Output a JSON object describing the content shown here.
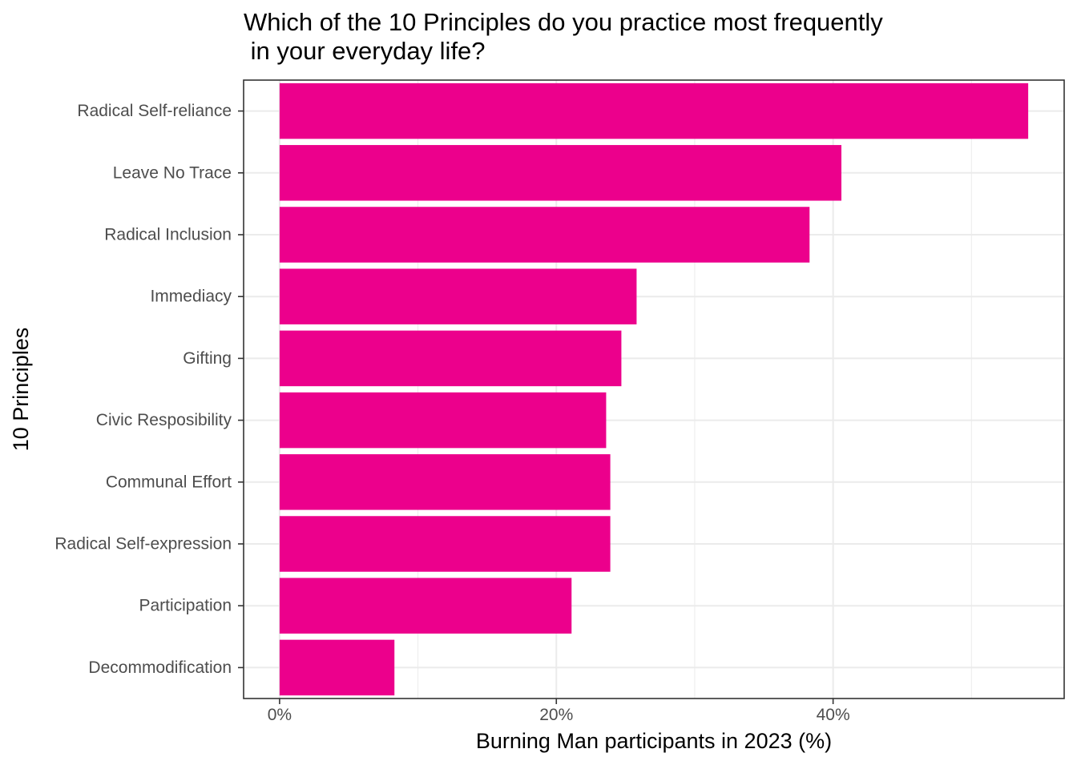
{
  "chart_data": {
    "type": "bar",
    "orientation": "horizontal",
    "title": "Which of the 10 Principles do you practice most frequently\n in your everyday life?",
    "xlabel": "Burning Man participants in 2023 (%)",
    "ylabel": "10 Principles",
    "categories": [
      "Radical Self-reliance",
      "Leave No Trace",
      "Radical Inclusion",
      "Immediacy",
      "Gifting",
      "Civic Resposibility",
      "Communal Effort",
      "Radical Self-expression",
      "Participation",
      "Decommodification"
    ],
    "values": [
      54.1,
      40.6,
      38.3,
      25.8,
      24.7,
      23.6,
      23.9,
      23.9,
      21.1,
      8.3
    ],
    "xlim": [
      -2.6,
      56.7
    ],
    "x_ticks": [
      0,
      20,
      40
    ],
    "x_tick_labels": [
      "0%",
      "20%",
      "40%"
    ],
    "bar_color": "#EC008C",
    "grid": true,
    "legend": "none"
  }
}
